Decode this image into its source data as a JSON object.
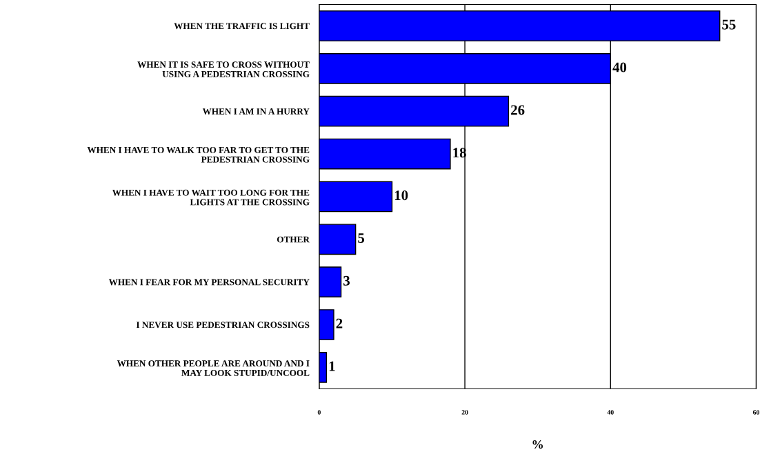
{
  "chart_data": {
    "type": "bar",
    "orientation": "horizontal",
    "xlabel": "%",
    "categories": [
      "WHEN THE TRAFFIC IS LIGHT",
      "WHEN IT IS SAFE TO CROSS WITHOUT\nUSING A PEDESTRIAN CROSSING",
      "WHEN I AM IN A HURRY",
      "WHEN I HAVE TO WALK TOO FAR TO GET TO THE\nPEDESTRIAN CROSSING",
      "WHEN I HAVE TO WAIT TOO LONG FOR THE\nLIGHTS AT THE CROSSING",
      "OTHER",
      "WHEN I FEAR FOR MY PERSONAL SECURITY",
      "I NEVER USE PEDESTRIAN CROSSINGS",
      "WHEN OTHER PEOPLE ARE AROUND AND I\nMAY LOOK STUPID/UNCOOL"
    ],
    "values": [
      55,
      40,
      26,
      18,
      10,
      5,
      3,
      2,
      1
    ],
    "color": "#0000ff",
    "xlim": [
      0,
      60
    ],
    "xticks": [
      0,
      20,
      40,
      60
    ],
    "grid": "x",
    "data_labels": true
  }
}
